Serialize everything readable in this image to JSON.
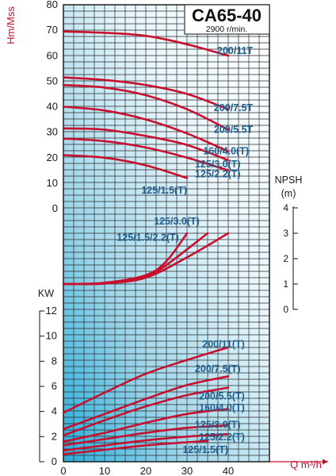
{
  "chart_data": {
    "type": "line",
    "title": "CA65-40",
    "subtitle": "2900 r/min.",
    "colors": {
      "curve": "#c8102e",
      "label": "#1f5f8f",
      "grid": "#222222",
      "fill_light": "#e6f4fa",
      "fill_dark": "#2bb0da"
    },
    "x_axis": {
      "label": "Q m³/h",
      "ticks": [
        0,
        10,
        20,
        30,
        40
      ],
      "range": [
        0,
        50
      ]
    },
    "head": {
      "ylabel": "Hm/Mss",
      "ticks": [
        0,
        10,
        20,
        30,
        40,
        50,
        60,
        70,
        80
      ],
      "range": [
        0,
        80
      ],
      "series": [
        {
          "name": "200/11T",
          "points": [
            [
              0,
              69.5
            ],
            [
              10,
              69
            ],
            [
              20,
              67.8
            ],
            [
              30,
              64.5
            ],
            [
              40,
              60
            ]
          ]
        },
        {
          "name": "200/7.5T",
          "points": [
            [
              0,
              51.5
            ],
            [
              10,
              50.5
            ],
            [
              20,
              48.5
            ],
            [
              30,
              45
            ],
            [
              40,
              39
            ]
          ]
        },
        {
          "name": "200/5.5T",
          "points": [
            [
              0,
              48.5
            ],
            [
              10,
              47.5
            ],
            [
              20,
              44.5
            ],
            [
              30,
              39
            ],
            [
              40,
              31
            ]
          ]
        },
        {
          "name": "160/4.0(T)",
          "points": [
            [
              0,
              40
            ],
            [
              10,
              38.5
            ],
            [
              20,
              35
            ],
            [
              30,
              29.5
            ],
            [
              40,
              22.5
            ]
          ]
        },
        {
          "name": "125/3.0(T)",
          "points": [
            [
              0,
              31.5
            ],
            [
              10,
              31
            ],
            [
              20,
              28.5
            ],
            [
              30,
              25
            ],
            [
              40,
              19
            ]
          ]
        },
        {
          "name": "125/2.2(T)",
          "points": [
            [
              0,
              27.5
            ],
            [
              10,
              26.5
            ],
            [
              20,
              24
            ],
            [
              30,
              20
            ],
            [
              40,
              15
            ]
          ]
        },
        {
          "name": "125/1.5(T)",
          "points": [
            [
              0,
              21
            ],
            [
              10,
              20
            ],
            [
              20,
              17
            ],
            [
              30,
              12
            ]
          ]
        }
      ]
    },
    "npsh": {
      "ylabel": "NPSH",
      "unit": "(m)",
      "ticks": [
        0,
        1,
        2,
        3,
        4
      ],
      "range": [
        0,
        4
      ],
      "series": [
        {
          "name": "125/3.0(T)",
          "points": [
            [
              0,
              1
            ],
            [
              10,
              1.05
            ],
            [
              20,
              1.35
            ],
            [
              25,
              1.9
            ],
            [
              30,
              3
            ]
          ]
        },
        {
          "name": "125/1.5/2.2(T)",
          "points": [
            [
              0,
              1
            ],
            [
              10,
              1.03
            ],
            [
              20,
              1.3
            ],
            [
              25,
              1.75
            ],
            [
              35,
              3
            ]
          ]
        },
        {
          "name": "200",
          "points": [
            [
              0,
              1
            ],
            [
              10,
              1.02
            ],
            [
              20,
              1.25
            ],
            [
              30,
              2.05
            ],
            [
              40,
              3
            ]
          ]
        }
      ]
    },
    "power": {
      "ylabel": "KW",
      "ticks": [
        0,
        2,
        4,
        6,
        8,
        10,
        12
      ],
      "range": [
        0,
        12
      ],
      "series": [
        {
          "name": "200/11(T)",
          "points": [
            [
              0,
              3.9
            ],
            [
              10,
              5.5
            ],
            [
              20,
              7
            ],
            [
              30,
              8.1
            ],
            [
              40,
              9.1
            ]
          ]
        },
        {
          "name": "200/7.5(T)",
          "points": [
            [
              0,
              2.6
            ],
            [
              10,
              3.8
            ],
            [
              20,
              5
            ],
            [
              30,
              6.1
            ],
            [
              40,
              6.8
            ]
          ]
        },
        {
          "name": "200/5.5(T)",
          "points": [
            [
              0,
              2.1
            ],
            [
              10,
              3.3
            ],
            [
              20,
              4.4
            ],
            [
              30,
              5.3
            ],
            [
              40,
              5.9
            ]
          ]
        },
        {
          "name": "160/4.0(T)",
          "points": [
            [
              0,
              1.6
            ],
            [
              10,
              2.3
            ],
            [
              20,
              3.1
            ],
            [
              30,
              3.8
            ],
            [
              40,
              4.2
            ]
          ]
        },
        {
          "name": "125/3.0(T)",
          "points": [
            [
              0,
              1.3
            ],
            [
              10,
              1.8
            ],
            [
              20,
              2.3
            ],
            [
              30,
              2.7
            ],
            [
              40,
              2.9
            ]
          ]
        },
        {
          "name": "125/2.2(T)",
          "points": [
            [
              0,
              0.9
            ],
            [
              10,
              1.3
            ],
            [
              20,
              1.7
            ],
            [
              30,
              2.0
            ],
            [
              40,
              2.2
            ]
          ]
        },
        {
          "name": "125/1.5(T)",
          "points": [
            [
              0,
              0.6
            ],
            [
              10,
              0.95
            ],
            [
              20,
              1.3
            ],
            [
              30,
              1.55
            ],
            [
              35,
              1.65
            ]
          ]
        }
      ]
    }
  }
}
